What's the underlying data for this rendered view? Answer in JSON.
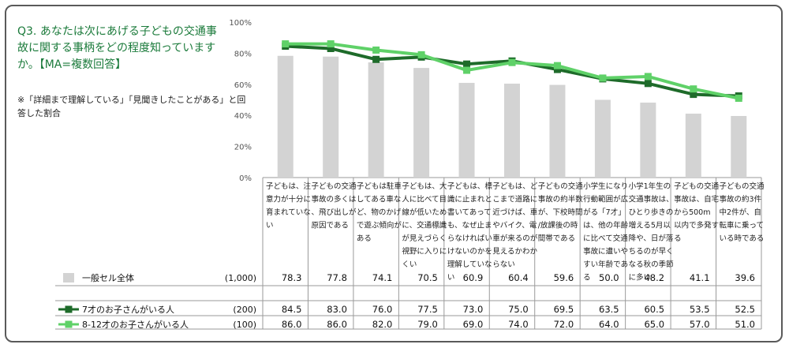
{
  "question": {
    "title": "Q3. あなたは次にあげる子どもの交通事故に関する事柄をどの程度知っていますか。【MA=複数回答】",
    "note": "※「詳細まで理解している」「見聞きしたことがある」と回答した割合"
  },
  "chart_data": {
    "type": "bar",
    "ylim": [
      0,
      100
    ],
    "y_ticks": [
      "0%",
      "20%",
      "40%",
      "60%",
      "80%",
      "100%"
    ],
    "categories": [
      "子どもは、注意力が十分に育まれていない",
      "子どもの交通事故の多くは、飛び出しが原因である",
      "子どもは駐車してある車など、物のかげで遊ぶ傾向がある",
      "子どもは、大人に比べて目線が低いために、交通標識が見えづらく視野に入りにくい",
      "子どもは、標識に止まれと書いてあっても、なぜ止まらなければいけないのかを理解していない",
      "子どもは、どこまで道路に近づけば、車やバイク、電車が来るのが見えるかわからない",
      "子どもの交通事故の約半数が、下校時間/放課後の時間帯である",
      "小学生になり行動範囲が広がる「7才」は、他の年齢に比べて交通事故に遭いやすい年齢である",
      "小学1年生の交通事故は、ひとり歩きの増える5月以降や、日が落ちるのが早くなる秋の季節に多い",
      "子どもの交通事故は、自宅から500m以内で多発する",
      "子どもの交通事故の約3件中2件が、自転車に乗っている時である"
    ],
    "series": [
      {
        "name": "一般セル全体",
        "n": "(1,000)",
        "kind": "bar",
        "color": "#d3d3d3",
        "values": [
          78.3,
          77.8,
          74.1,
          70.5,
          60.9,
          60.4,
          59.6,
          50.0,
          48.2,
          41.1,
          39.6
        ],
        "labels": [
          "78.3",
          "77.8",
          "74.1",
          "70.5",
          "60.9",
          "60.4",
          "59.6",
          "50.0",
          "48.2",
          "41.1",
          "39.6"
        ]
      },
      {
        "name": "7才のお子さんがいる人",
        "n": "(200)",
        "kind": "line",
        "color": "#1e6b2a",
        "values": [
          84.5,
          83.0,
          76.0,
          77.5,
          73.0,
          75.0,
          69.5,
          63.5,
          60.5,
          53.5,
          52.5
        ],
        "labels": [
          "84.5",
          "83.0",
          "76.0",
          "77.5",
          "73.0",
          "75.0",
          "69.5",
          "63.5",
          "60.5",
          "53.5",
          "52.5"
        ]
      },
      {
        "name": "8-12才のお子さんがいる人",
        "n": "(100)",
        "kind": "line",
        "color": "#5fd168",
        "values": [
          86.0,
          86.0,
          82.0,
          79.0,
          69.0,
          74.0,
          72.0,
          64.0,
          65.0,
          57.0,
          51.0
        ],
        "labels": [
          "86.0",
          "86.0",
          "82.0",
          "79.0",
          "69.0",
          "74.0",
          "72.0",
          "64.0",
          "65.0",
          "57.0",
          "51.0"
        ]
      }
    ]
  }
}
